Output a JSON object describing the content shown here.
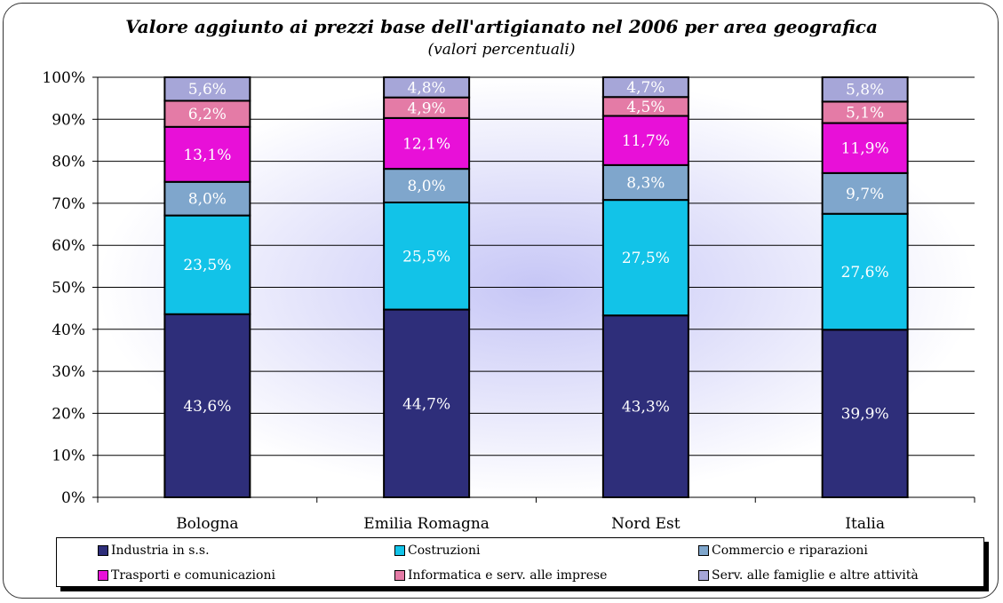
{
  "chart_data": {
    "type": "bar",
    "stacked": true,
    "title": "Valore aggiunto ai prezzi base dell'artigianato nel 2006 per area geografica",
    "subtitle": "(valori percentuali)",
    "categories": [
      "Bologna",
      "Emilia Romagna",
      "Nord Est",
      "Italia"
    ],
    "ylim": [
      0,
      100
    ],
    "yticks": [
      "0%",
      "10%",
      "20%",
      "30%",
      "40%",
      "50%",
      "60%",
      "70%",
      "80%",
      "90%",
      "100%"
    ],
    "grid": true,
    "legend_position": "bottom",
    "series": [
      {
        "name": "Industria in s.s.",
        "color": "#2E2E7A",
        "values": [
          43.6,
          44.7,
          43.3,
          39.9
        ],
        "labels": [
          "43,6%",
          "44,7%",
          "43,3%",
          "39,9%"
        ]
      },
      {
        "name": "Costruzioni",
        "color": "#12C3E8",
        "values": [
          23.5,
          25.5,
          27.5,
          27.6
        ],
        "labels": [
          "23,5%",
          "25,5%",
          "27,5%",
          "27,6%"
        ]
      },
      {
        "name": "Commercio e riparazioni",
        "color": "#7FA6CC",
        "values": [
          8.0,
          8.0,
          8.3,
          9.7
        ],
        "labels": [
          "8,0%",
          "8,0%",
          "8,3%",
          "9,7%"
        ]
      },
      {
        "name": "Trasporti e comunicazioni",
        "color": "#E810D8",
        "values": [
          13.1,
          12.1,
          11.7,
          11.9
        ],
        "labels": [
          "13,1%",
          "12,1%",
          "11,7%",
          "11,9%"
        ]
      },
      {
        "name": "Informatica e serv. alle imprese",
        "color": "#E47BA6",
        "values": [
          6.2,
          4.9,
          4.5,
          5.1
        ],
        "labels": [
          "6,2%",
          "4,9%",
          "4,5%",
          "5,1%"
        ]
      },
      {
        "name": "Serv. alle famiglie e altre attività",
        "color": "#A6A6D8",
        "values": [
          5.6,
          4.8,
          4.7,
          5.8
        ],
        "labels": [
          "5,6%",
          "4,8%",
          "4,7%",
          "5,8%"
        ]
      }
    ]
  }
}
